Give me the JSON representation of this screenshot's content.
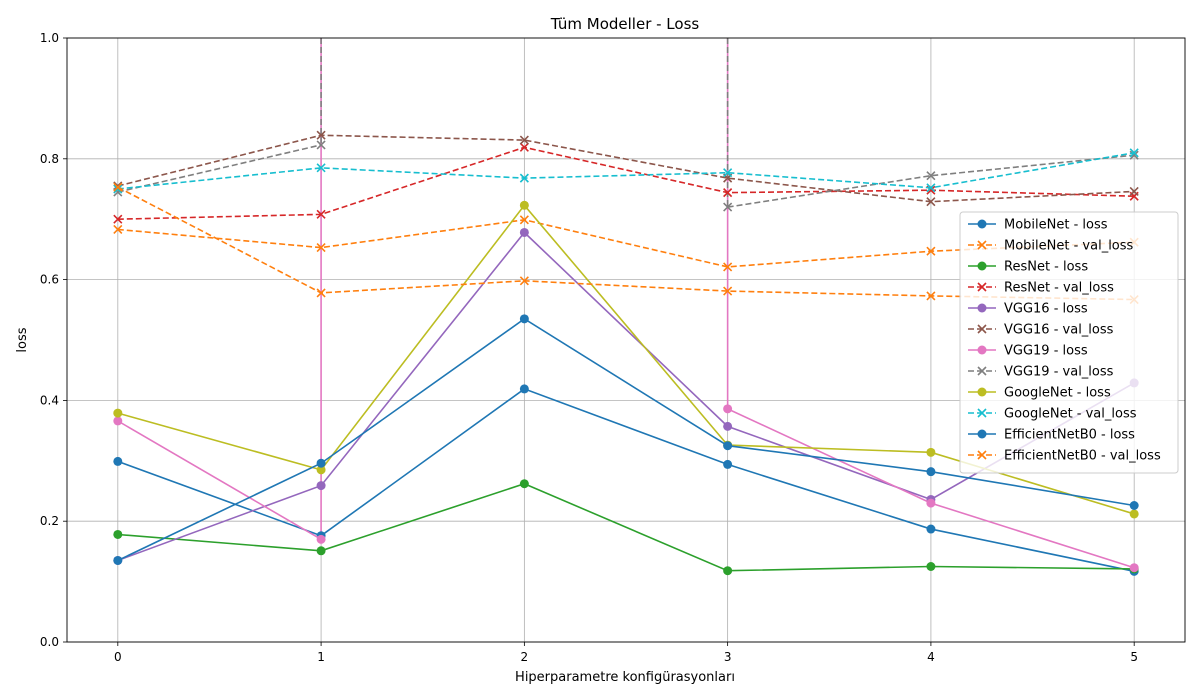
{
  "chart_data": {
    "type": "line",
    "title": "Tüm Modeller - Loss",
    "xlabel": "Hiperparametre konfigürasyonları",
    "ylabel": "loss",
    "x": [
      0,
      1,
      2,
      3,
      4,
      5
    ],
    "xlim": [
      -0.25,
      5.25
    ],
    "ylim": [
      0,
      1.0
    ],
    "xticks": [
      "0",
      "1",
      "2",
      "3",
      "4",
      "5"
    ],
    "yticks": [
      "0.0",
      "0.2",
      "0.4",
      "0.6",
      "0.8",
      "1.0"
    ],
    "grid": true,
    "legend_position": "right",
    "series": [
      {
        "name": "MobileNet - loss",
        "values": [
          0.299,
          0.176,
          0.419,
          0.294,
          0.187,
          0.117
        ],
        "color": "#1f77b4",
        "dash": false,
        "marker": "circle"
      },
      {
        "name": "MobileNet - val_loss",
        "values": [
          0.683,
          0.653,
          0.699,
          0.621,
          0.647,
          0.662
        ],
        "color": "#ff7f0e",
        "dash": true,
        "marker": "x"
      },
      {
        "name": "ResNet - loss",
        "values": [
          0.178,
          0.151,
          0.262,
          0.118,
          0.125,
          0.121
        ],
        "color": "#2ca02c",
        "dash": false,
        "marker": "circle"
      },
      {
        "name": "ResNet - val_loss",
        "values": [
          0.7,
          0.708,
          0.819,
          0.744,
          0.748,
          0.738
        ],
        "color": "#d62728",
        "dash": true,
        "marker": "x"
      },
      {
        "name": "VGG16 - loss",
        "values": [
          0.135,
          0.259,
          0.678,
          0.357,
          0.236,
          0.429
        ],
        "color": "#9467bd",
        "dash": false,
        "marker": "circle"
      },
      {
        "name": "VGG16 - val_loss",
        "values": [
          0.755,
          0.839,
          0.831,
          0.768,
          0.729,
          0.746
        ],
        "color": "#8c564b",
        "dash": true,
        "marker": "x"
      },
      {
        "name": "VGG19 - loss",
        "values": [
          0.366,
          0.17,
          null,
          0.386,
          0.23,
          0.123
        ],
        "color": "#e377c2",
        "dash": false,
        "marker": "circle",
        "spikes": [
          1,
          3
        ]
      },
      {
        "name": "VGG19 - val_loss",
        "values": [
          0.745,
          0.823,
          null,
          0.72,
          0.772,
          0.806
        ],
        "color": "#7f7f7f",
        "dash": true,
        "marker": "x",
        "spikes": [
          1,
          3
        ]
      },
      {
        "name": "GoogleNet - loss",
        "values": [
          0.379,
          0.285,
          0.723,
          0.326,
          0.314,
          0.212
        ],
        "color": "#bcbd22",
        "dash": false,
        "marker": "circle"
      },
      {
        "name": "GoogleNet - val_loss",
        "values": [
          0.75,
          0.785,
          0.768,
          0.777,
          0.752,
          0.81
        ],
        "color": "#17becf",
        "dash": true,
        "marker": "x"
      },
      {
        "name": "EfficientNetB0 - loss",
        "values": [
          0.135,
          0.296,
          0.535,
          0.325,
          0.282,
          0.226
        ],
        "color": "#1f77b4",
        "dash": false,
        "marker": "circle"
      },
      {
        "name": "EfficientNetB0 - val_loss",
        "values": [
          0.753,
          0.578,
          0.598,
          0.581,
          0.573,
          0.567
        ],
        "color": "#ff7f0e",
        "dash": true,
        "marker": "x"
      }
    ]
  }
}
